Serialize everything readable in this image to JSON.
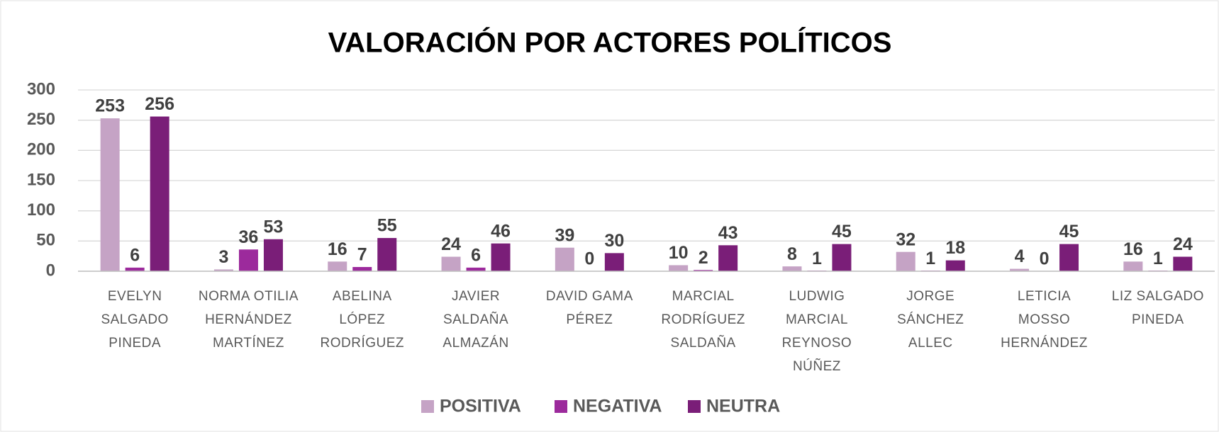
{
  "chart_data": {
    "type": "bar",
    "title": "VALORACIÓN POR ACTORES POLÍTICOS",
    "categories": [
      "EVELYN SALGADO PINEDA",
      "NORMA OTILIA HERNÁNDEZ MARTÍNEZ",
      "ABELINA LÓPEZ RODRÍGUEZ",
      "JAVIER SALDAÑA ALMAZÁN",
      "DAVID GAMA PÉREZ",
      "MARCIAL RODRÍGUEZ SALDAÑA",
      "LUDWIG MARCIAL REYNOSO NÚÑEZ",
      "JORGE SÁNCHEZ ALLEC",
      "LETICIA MOSSO HERNÁNDEZ",
      "LIZ SALGADO PINEDA"
    ],
    "series": [
      {
        "name": "POSITIVA",
        "color": "#c5a3c5",
        "values": [
          253,
          3,
          16,
          24,
          39,
          10,
          8,
          32,
          4,
          16
        ]
      },
      {
        "name": "NEGATIVA",
        "color": "#9c2a9c",
        "values": [
          6,
          36,
          7,
          6,
          0,
          2,
          1,
          1,
          0,
          1
        ]
      },
      {
        "name": "NEUTRA",
        "color": "#7a1e78",
        "values": [
          256,
          53,
          55,
          46,
          30,
          43,
          45,
          18,
          45,
          24
        ]
      }
    ],
    "ylim": [
      0,
      300
    ],
    "yticks": [
      0,
      50,
      100,
      150,
      200,
      250,
      300
    ],
    "grid": true,
    "legend": "bottom"
  }
}
